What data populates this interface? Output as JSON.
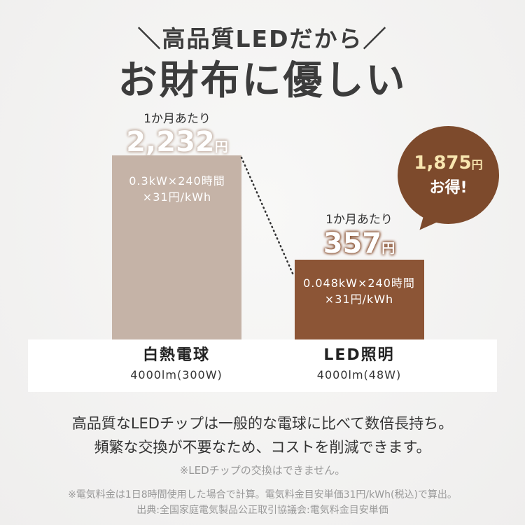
{
  "header": {
    "subtitle": "＼高品質LEDだから／",
    "title": "お財布に優しい"
  },
  "chart_data": {
    "type": "bar",
    "categories": [
      "白熱電球",
      "LED照明"
    ],
    "values": [
      2232,
      357
    ],
    "unit": "円",
    "colors": [
      "#c5b3a7",
      "#8c5536"
    ],
    "bars": [
      {
        "name": "白熱電球",
        "spec": "4000lm(300W)",
        "period": "1か月あたり",
        "value": "2,232",
        "unit": "円",
        "calc_line1": "0.3kW×240時間",
        "calc_line2": "×31円/kWh"
      },
      {
        "name": "LED照明",
        "spec": "4000lm(48W)",
        "period": "1か月あたり",
        "value": "357",
        "unit": "円",
        "calc_line1": "0.048kW×240時間",
        "calc_line2": "×31円/kWh"
      }
    ],
    "savings": {
      "value": "1,875",
      "unit": "円",
      "label": "お得!",
      "color": "#7d4a2c"
    }
  },
  "description": {
    "line1": "高品質なLEDチップは一般的な電球に比べて数倍長持ち。",
    "line2": "頻繁な交換が不要なため、コストを削減できます。"
  },
  "notes": {
    "note1": "※LEDチップの交換はできません。",
    "note2": "※電気料金は1日8時間使用した場合で計算。電気料金目安単価31円/kWh(税込)で算出。",
    "note3": "出典:全国家庭電気製品公正取引協議会:電気料金目安単価"
  }
}
